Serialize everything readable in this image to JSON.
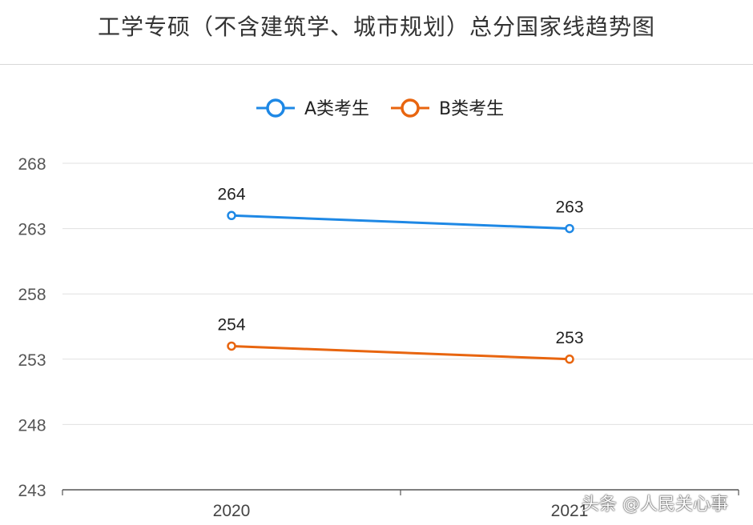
{
  "chart_data": {
    "type": "line",
    "title": "工学专硕（不含建筑学、城市规划）总分国家线趋势图",
    "categories": [
      "2020",
      "2021"
    ],
    "series": [
      {
        "name": "A类考生",
        "values": [
          264,
          263
        ],
        "color": "#1e88e5"
      },
      {
        "name": "B类考生",
        "values": [
          254,
          253
        ],
        "color": "#e8650f"
      }
    ],
    "yticks": [
      243,
      248,
      253,
      258,
      263,
      268
    ],
    "ylim": [
      243,
      268
    ],
    "grid": true,
    "legend": "top-center",
    "data_labels": true
  },
  "watermark": "头条 @人民关心事"
}
